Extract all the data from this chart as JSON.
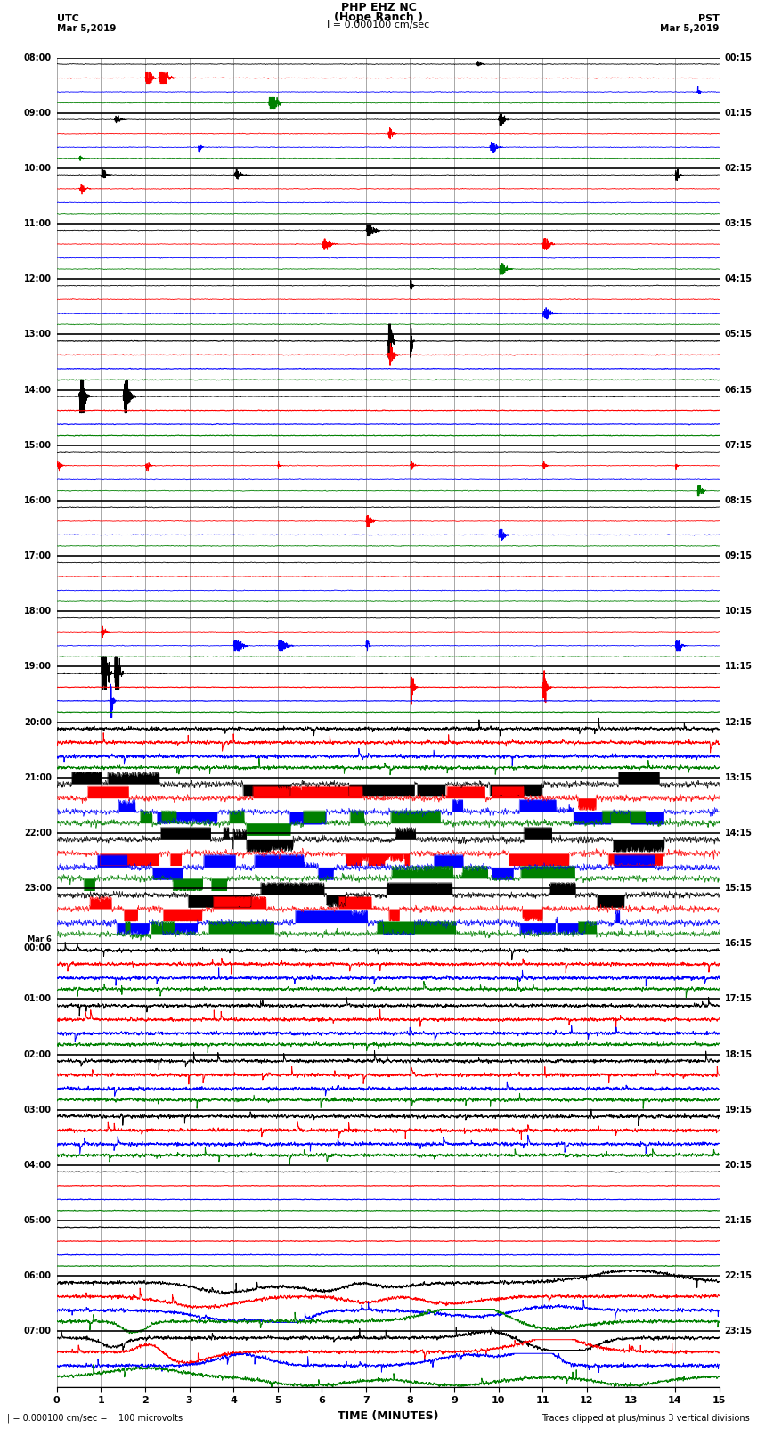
{
  "title_line1": "PHP EHZ NC",
  "title_line2": "(Hope Ranch )",
  "scale_label": "I = 0.000100 cm/sec",
  "utc_label": "UTC",
  "pst_label": "PST",
  "date_left": "Mar 5,2019",
  "date_right": "Mar 5,2019",
  "xlabel": "TIME (MINUTES)",
  "footer_left": "| = 0.000100 cm/sec =    100 microvolts",
  "footer_right": "Traces clipped at plus/minus 3 vertical divisions",
  "bg_color": "#ffffff",
  "trace_colors": [
    "black",
    "red",
    "blue",
    "green"
  ],
  "num_rows": 24,
  "utc_times": [
    "08:00",
    "09:00",
    "10:00",
    "11:00",
    "12:00",
    "13:00",
    "14:00",
    "15:00",
    "16:00",
    "17:00",
    "18:00",
    "19:00",
    "20:00",
    "21:00",
    "22:00",
    "23:00",
    "Mar 6\n00:00",
    "01:00",
    "02:00",
    "03:00",
    "04:00",
    "05:00",
    "06:00",
    "07:00"
  ],
  "pst_times": [
    "00:15",
    "01:15",
    "02:15",
    "03:15",
    "04:15",
    "05:15",
    "06:15",
    "07:15",
    "08:15",
    "09:15",
    "10:15",
    "11:15",
    "12:15",
    "13:15",
    "14:15",
    "15:15",
    "16:15",
    "17:15",
    "18:15",
    "19:15",
    "20:15",
    "21:15",
    "22:15",
    "23:15"
  ],
  "x_ticks": [
    0,
    1,
    2,
    3,
    4,
    5,
    6,
    7,
    8,
    9,
    10,
    11,
    12,
    13,
    14,
    15
  ],
  "figsize": [
    8.5,
    16.13
  ],
  "dpi": 100
}
